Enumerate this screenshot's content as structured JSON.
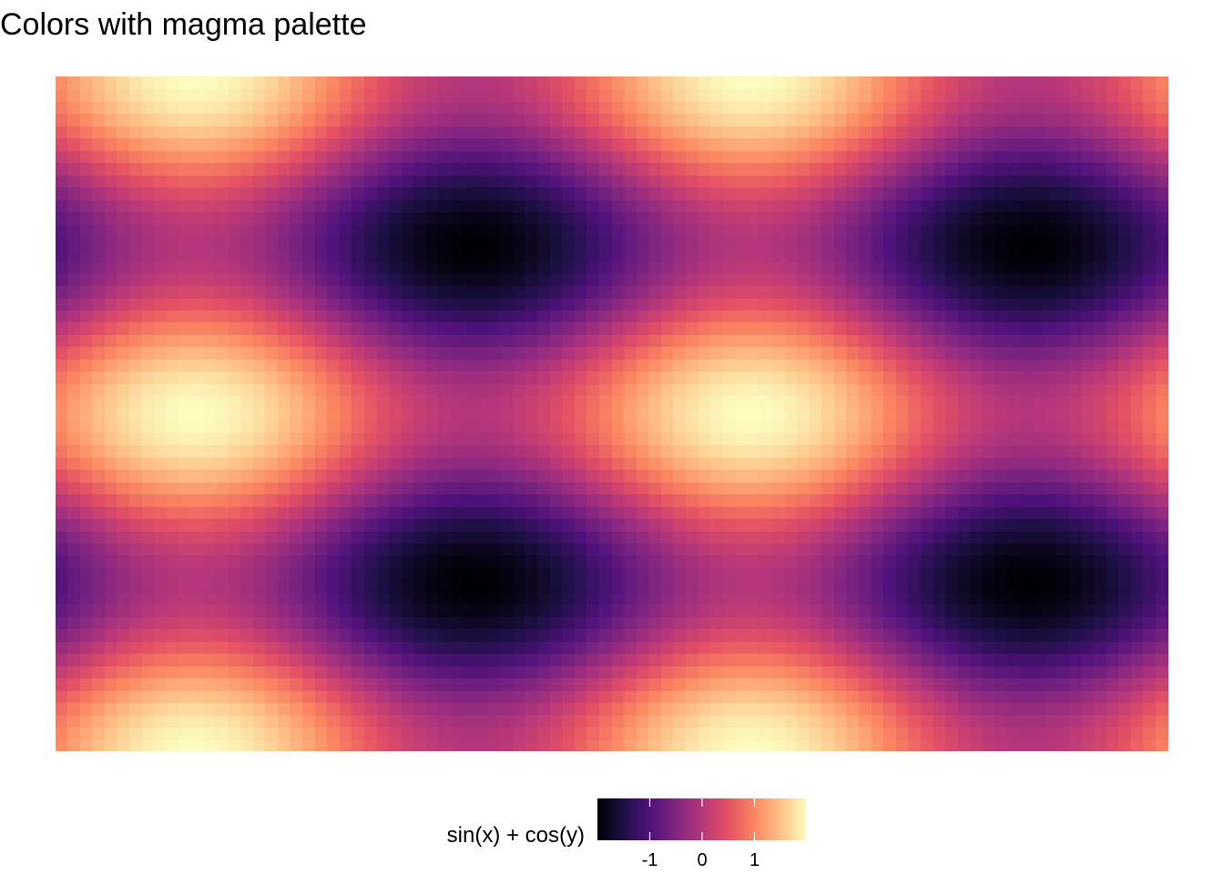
{
  "chart_data": {
    "type": "heatmap",
    "title": "Colors with magma palette",
    "function": "sin(x) + cos(y)",
    "x_range": [
      0,
      12.566
    ],
    "y_range": [
      0,
      12.566
    ],
    "grid": {
      "nx": 90,
      "ny": 55
    },
    "value_range": [
      -2,
      2
    ],
    "legend": {
      "title": "sin(x) + cos(y)",
      "position": "bottom",
      "ticks": [
        {
          "value": -1,
          "label": "-1"
        },
        {
          "value": 0,
          "label": "0"
        },
        {
          "value": 1,
          "label": "1"
        }
      ]
    },
    "palette": {
      "name": "magma",
      "stops": [
        "#000004",
        "#1c1044",
        "#4f127b",
        "#812581",
        "#b5367a",
        "#e55064",
        "#fb8761",
        "#fec287",
        "#fcfdbf"
      ]
    },
    "axes_visible": false,
    "grid_lines": false
  }
}
